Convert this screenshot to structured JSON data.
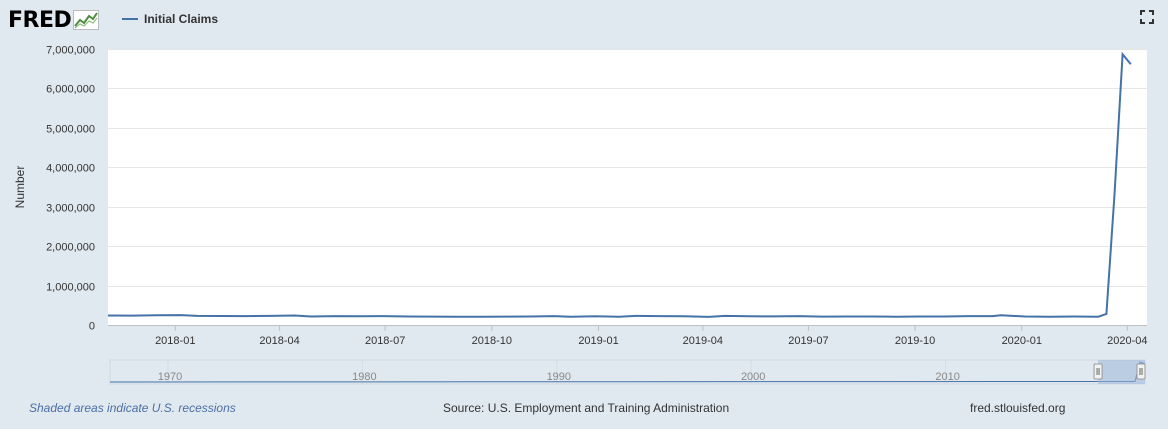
{
  "brand": {
    "logo_text": "FRED",
    "logo_icon": "chart-line-icon"
  },
  "legend": {
    "series_name": "Initial Claims",
    "color": "#4572a7"
  },
  "controls": {
    "fullscreen_icon": "fullscreen-icon"
  },
  "footer": {
    "recessions_note": "Shaded areas indicate U.S. recessions",
    "source": "Source: U.S. Employment and Training Administration",
    "site": "fred.stlouisfed.org"
  },
  "chart_data": {
    "type": "line",
    "title": "",
    "xlabel": "",
    "ylabel": "Number",
    "ylim": [
      0,
      7000000
    ],
    "yticks": [
      0,
      1000000,
      2000000,
      3000000,
      4000000,
      5000000,
      6000000,
      7000000
    ],
    "ytick_labels": [
      "0",
      "1,000,000",
      "2,000,000",
      "3,000,000",
      "4,000,000",
      "5,000,000",
      "6,000,000",
      "7,000,000"
    ],
    "xlim": [
      "2017-11-04",
      "2020-04-18"
    ],
    "xticks": [
      "2018-01-01",
      "2018-04-01",
      "2018-07-01",
      "2018-10-01",
      "2019-01-01",
      "2019-04-01",
      "2019-07-01",
      "2019-10-01",
      "2020-01-01",
      "2020-04-01"
    ],
    "xtick_labels": [
      "2018-01",
      "2018-04",
      "2018-07",
      "2018-10",
      "2019-01",
      "2019-04",
      "2019-07",
      "2019-10",
      "2020-01",
      "2020-04"
    ],
    "grid": true,
    "legend_position": "top-left",
    "series": [
      {
        "name": "Initial Claims",
        "color": "#4572a7",
        "points": [
          [
            "2017-11-04",
            240000
          ],
          [
            "2017-11-25",
            238000
          ],
          [
            "2017-12-16",
            245000
          ],
          [
            "2018-01-06",
            250000
          ],
          [
            "2018-01-20",
            230000
          ],
          [
            "2018-02-10",
            228000
          ],
          [
            "2018-03-03",
            226000
          ],
          [
            "2018-03-24",
            230000
          ],
          [
            "2018-04-14",
            240000
          ],
          [
            "2018-04-28",
            215000
          ],
          [
            "2018-05-19",
            225000
          ],
          [
            "2018-06-09",
            220000
          ],
          [
            "2018-06-30",
            225000
          ],
          [
            "2018-07-21",
            215000
          ],
          [
            "2018-08-11",
            212000
          ],
          [
            "2018-09-01",
            210000
          ],
          [
            "2018-09-22",
            210000
          ],
          [
            "2018-10-13",
            212000
          ],
          [
            "2018-11-03",
            215000
          ],
          [
            "2018-11-24",
            225000
          ],
          [
            "2018-12-08",
            210000
          ],
          [
            "2018-12-29",
            220000
          ],
          [
            "2019-01-19",
            210000
          ],
          [
            "2019-02-02",
            232000
          ],
          [
            "2019-02-23",
            225000
          ],
          [
            "2019-03-16",
            220000
          ],
          [
            "2019-04-06",
            205000
          ],
          [
            "2019-04-20",
            230000
          ],
          [
            "2019-05-11",
            220000
          ],
          [
            "2019-06-01",
            218000
          ],
          [
            "2019-06-22",
            225000
          ],
          [
            "2019-07-13",
            212000
          ],
          [
            "2019-08-03",
            215000
          ],
          [
            "2019-08-24",
            215000
          ],
          [
            "2019-09-14",
            210000
          ],
          [
            "2019-10-05",
            215000
          ],
          [
            "2019-10-26",
            215000
          ],
          [
            "2019-11-16",
            225000
          ],
          [
            "2019-12-07",
            225000
          ],
          [
            "2019-12-14",
            245000
          ],
          [
            "2020-01-04",
            215000
          ],
          [
            "2020-01-25",
            210000
          ],
          [
            "2020-02-15",
            215000
          ],
          [
            "2020-03-07",
            211000
          ],
          [
            "2020-03-14",
            282000
          ],
          [
            "2020-03-21",
            3307000
          ],
          [
            "2020-03-28",
            6867000
          ],
          [
            "2020-04-04",
            6615000
          ]
        ]
      }
    ],
    "navigator": {
      "xlim": [
        "1967-01-07",
        "2020-04-04"
      ],
      "tick_labels": [
        "1970",
        "1980",
        "1990",
        "2000",
        "2010"
      ],
      "ticks": [
        "1970-01-01",
        "1980-01-01",
        "1990-01-01",
        "2000-01-01",
        "2010-01-01"
      ],
      "selected_range": [
        "2017-11-04",
        "2020-04-04"
      ]
    }
  }
}
